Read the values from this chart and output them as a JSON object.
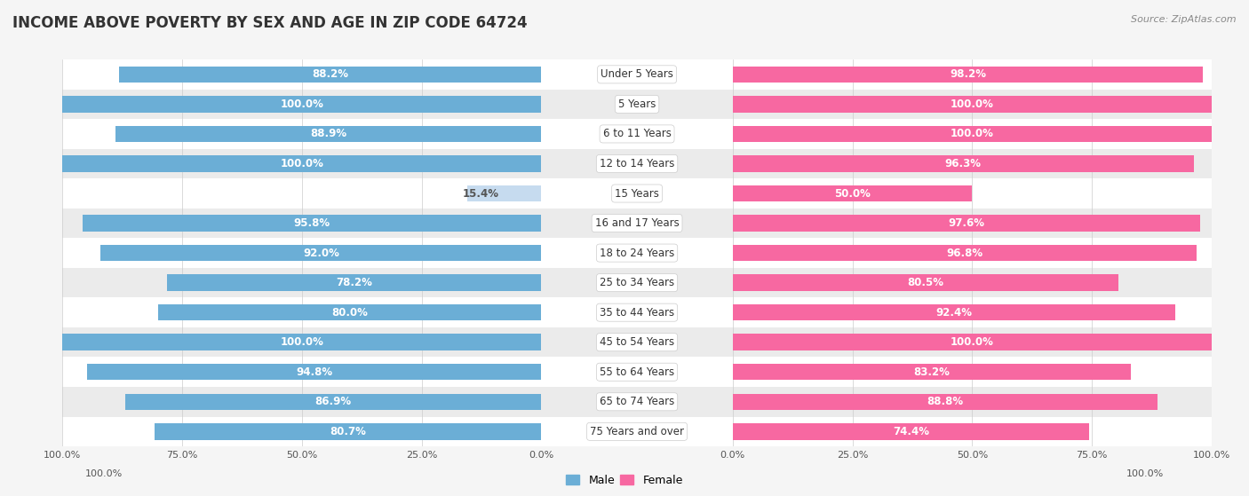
{
  "title": "INCOME ABOVE POVERTY BY SEX AND AGE IN ZIP CODE 64724",
  "source": "Source: ZipAtlas.com",
  "categories": [
    "Under 5 Years",
    "5 Years",
    "6 to 11 Years",
    "12 to 14 Years",
    "15 Years",
    "16 and 17 Years",
    "18 to 24 Years",
    "25 to 34 Years",
    "35 to 44 Years",
    "45 to 54 Years",
    "55 to 64 Years",
    "65 to 74 Years",
    "75 Years and over"
  ],
  "male_values": [
    88.2,
    100.0,
    88.9,
    100.0,
    15.4,
    95.8,
    92.0,
    78.2,
    80.0,
    100.0,
    94.8,
    86.9,
    80.7
  ],
  "female_values": [
    98.2,
    100.0,
    100.0,
    96.3,
    50.0,
    97.6,
    96.8,
    80.5,
    92.4,
    100.0,
    83.2,
    88.8,
    74.4
  ],
  "male_color": "#6baed6",
  "female_color": "#f768a1",
  "male_color_light": "#c6dbef",
  "female_color_light": "#fcc5c0",
  "bar_height": 0.55,
  "background_color": "#f5f5f5",
  "row_colors": [
    "#ffffff",
    "#ebebeb"
  ],
  "title_fontsize": 12,
  "label_fontsize": 8.5,
  "tick_fontsize": 8,
  "category_fontsize": 8.5,
  "legend_fontsize": 9
}
